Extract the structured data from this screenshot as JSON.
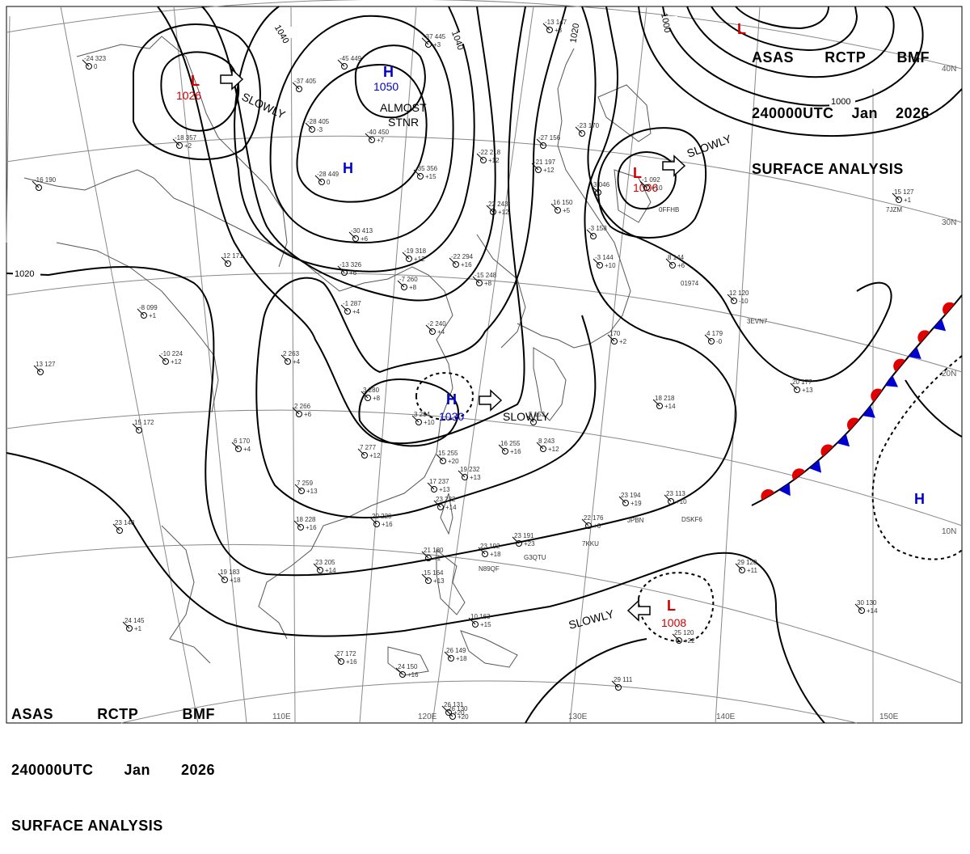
{
  "title": {
    "agency": "ASAS",
    "station": "RCTP",
    "office": "BMF",
    "time": "240000UTC",
    "month": "Jan",
    "year": "2026",
    "product": "SURFACE ANALYSIS"
  },
  "pressure_systems": [
    {
      "type": "L",
      "pressure": "1026",
      "color": "#d00000"
    },
    {
      "type": "H",
      "pressure": "1050",
      "color": "#0000c8",
      "note_line1": "ALMOST",
      "note_line2": "STNR"
    },
    {
      "type": "H",
      "pressure": "",
      "color": "#0000c8"
    },
    {
      "type": "L",
      "pressure": "1006",
      "color": "#d00000"
    },
    {
      "type": "H",
      "pressure": "1030",
      "color": "#0000c8"
    },
    {
      "type": "L",
      "pressure": "1008",
      "color": "#d00000"
    },
    {
      "type": "H",
      "pressure": "",
      "color": "#0000c8"
    },
    {
      "type": "L",
      "pressure": "",
      "color": "#d00000"
    }
  ],
  "motion_labels": [
    "SLOWLY",
    "SLOWLY",
    "SLOWLY",
    "SLOWLY"
  ],
  "isobar_labels": [
    "1040",
    "1040",
    "1020",
    "1020",
    "1000",
    "1000"
  ],
  "longitude_labels": [
    "110E",
    "120E",
    "130E",
    "140E",
    "150E"
  ],
  "latitude_labels": [
    "40N",
    "30N",
    "20N",
    "10N"
  ],
  "stations": [
    {
      "line1": "-24 323",
      "line2": "0"
    },
    {
      "line1": "-18 357",
      "line2": "+2"
    },
    {
      "line1": "-45 449",
      "line2": ""
    },
    {
      "line1": "-37 405",
      "line2": ""
    },
    {
      "line1": "-28 405",
      "line2": "-3"
    },
    {
      "line1": "-40 450",
      "line2": "+7"
    },
    {
      "line1": "-28 449",
      "line2": "0"
    },
    {
      "line1": "-35 356",
      "line2": "+15"
    },
    {
      "line1": "-22 218",
      "line2": "+12"
    },
    {
      "line1": "22 243",
      "line2": "+12"
    },
    {
      "line1": "-30 413",
      "line2": "+6"
    },
    {
      "line1": "-13 326",
      "line2": "+6"
    },
    {
      "line1": "-19 318",
      "line2": "+12"
    },
    {
      "line1": "-22 294",
      "line2": "+16"
    },
    {
      "line1": "-7 260",
      "line2": "+8"
    },
    {
      "line1": "-1 287",
      "line2": "+4"
    },
    {
      "line1": "-8 099",
      "line2": "+1"
    },
    {
      "line1": "-10 224",
      "line2": "+12"
    },
    {
      "line1": "13 127",
      "line2": ""
    },
    {
      "line1": "15 172",
      "line2": ""
    },
    {
      "line1": "2 263",
      "line2": "+4"
    },
    {
      "line1": "3 280",
      "line2": "+8"
    },
    {
      "line1": "2 266",
      "line2": "+6"
    },
    {
      "line1": "6 170",
      "line2": "+4"
    },
    {
      "line1": "-2 240",
      "line2": "+4"
    },
    {
      "line1": "3 294",
      "line2": "+10"
    },
    {
      "line1": "7 277",
      "line2": "+12"
    },
    {
      "line1": "15 255",
      "line2": "+20"
    },
    {
      "line1": "19 232",
      "line2": "+13"
    },
    {
      "line1": "16 255",
      "line2": "+16"
    },
    {
      "line1": "8 243",
      "line2": "+12"
    },
    {
      "line1": "7 259",
      "line2": "+13"
    },
    {
      "line1": "17 237",
      "line2": "+13"
    },
    {
      "line1": "23 232",
      "line2": "+14"
    },
    {
      "line1": "18 228",
      "line2": "+16"
    },
    {
      "line1": "20 220",
      "line2": "+16"
    },
    {
      "line1": "23 205",
      "line2": "+14"
    },
    {
      "line1": "19 183",
      "line2": "+18"
    },
    {
      "line1": "23 148",
      "line2": ""
    },
    {
      "line1": "24 145",
      "line2": "+1"
    },
    {
      "line1": "27 172",
      "line2": "+16"
    },
    {
      "line1": "24 150",
      "line2": "+16"
    },
    {
      "line1": "26 149",
      "line2": "+18"
    },
    {
      "line1": "26 131",
      "line2": "+20"
    },
    {
      "line1": "26 130",
      "line2": "+20"
    },
    {
      "line1": "15 164",
      "line2": "+13"
    },
    {
      "line1": "21 180",
      "line2": "+1"
    },
    {
      "line1": "23 192",
      "line2": "+18"
    },
    {
      "line1": "23 191",
      "line2": "+23"
    },
    {
      "line1": "22 176",
      "line2": "+6"
    },
    {
      "line1": "23 194",
      "line2": "+19"
    },
    {
      "line1": "23 113",
      "line2": "+10"
    },
    {
      "line1": "18 218",
      "line2": "+14"
    },
    {
      "line1": "20 177",
      "line2": "+13"
    },
    {
      "line1": "12 120",
      "line2": "-10"
    },
    {
      "line1": "8 144",
      "line2": "+6"
    },
    {
      "line1": "-3 144",
      "line2": "+10"
    },
    {
      "line1": "16 150",
      "line2": "+5"
    },
    {
      "line1": "-21 197",
      "line2": "+12"
    },
    {
      "line1": "-27 156",
      "line2": ""
    },
    {
      "line1": "-23 170",
      "line2": ""
    },
    {
      "line1": "3 046",
      "line2": ""
    },
    {
      "line1": "-1 092",
      "line2": "+10"
    },
    {
      "line1": "15 127",
      "line2": "+1"
    },
    {
      "line1": "170",
      "line2": "+2"
    },
    {
      "line1": "4 179",
      "line2": "-0"
    },
    {
      "line1": "29 120",
      "line2": "+11"
    },
    {
      "line1": "30 130",
      "line2": "+14"
    },
    {
      "line1": "25 120",
      "line2": "+22"
    },
    {
      "line1": "29 111",
      "line2": ""
    },
    {
      "line1": "-13 147",
      "line2": "+3"
    },
    {
      "line1": "-37 445",
      "line2": "+3"
    },
    {
      "line1": "-16 190",
      "line2": ""
    },
    {
      "line1": "12 171",
      "line2": ""
    },
    {
      "line1": "-3 158",
      "line2": ""
    },
    {
      "line1": "5 153",
      "line2": ""
    },
    {
      "line1": "-15 248",
      "line2": "+8"
    },
    {
      "line1": "10 163",
      "line2": "+15"
    }
  ],
  "ship_ids": [
    "0FFHB",
    "7JZM",
    "01974",
    "3EVN7",
    "JPBN",
    "DSKF6",
    "7KKU",
    "G3QTU",
    "N89QF"
  ],
  "colors": {
    "low": "#d00000",
    "high": "#0000c8",
    "warm_front": "#e00000",
    "cold_front": "#0000d0",
    "isobar": "#000000",
    "grid": "#888888",
    "coast": "#555555"
  }
}
